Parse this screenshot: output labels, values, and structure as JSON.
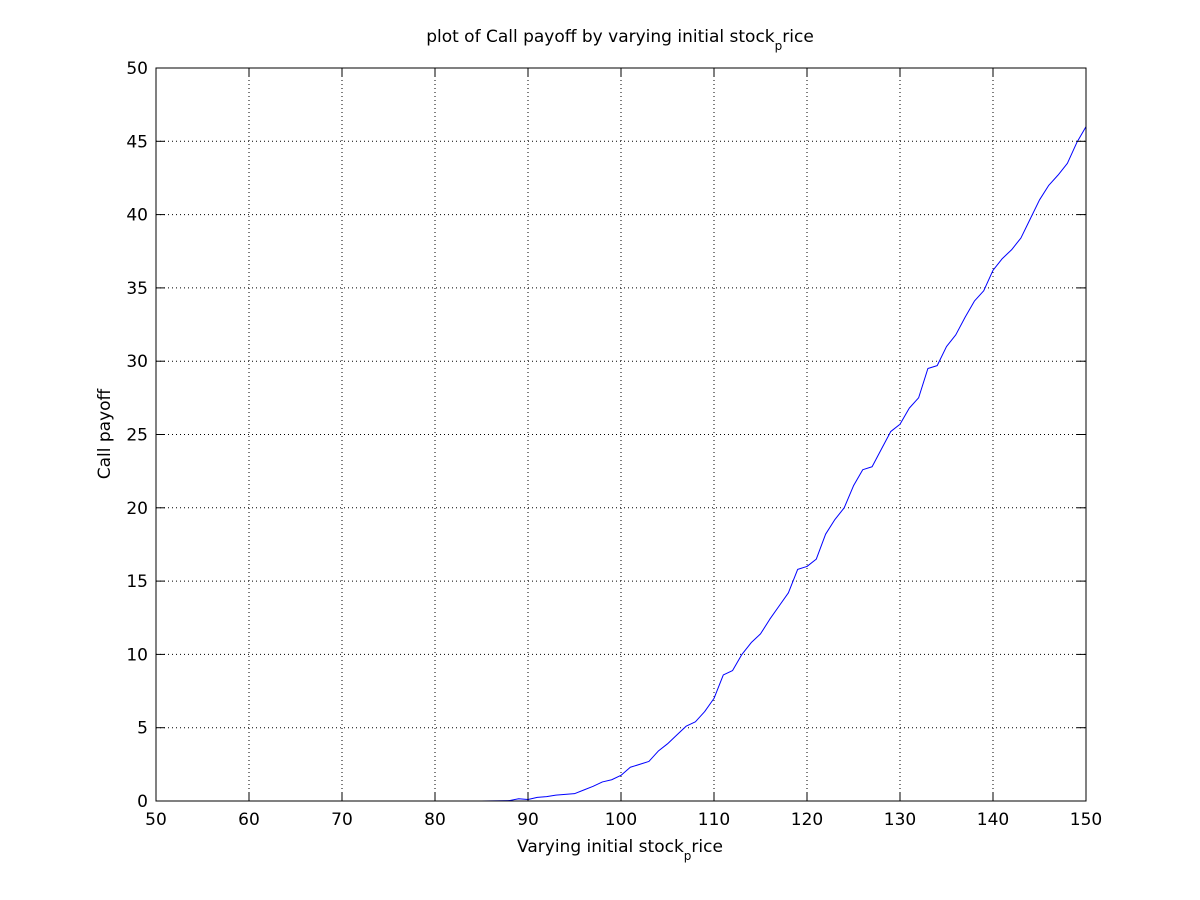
{
  "chart_data": {
    "type": "line",
    "title": {
      "main": "plot of Call payoff by varying initial stock",
      "sub": "p",
      "rest": "rice"
    },
    "xlabel": {
      "main": "Varying initial stock",
      "sub": "p",
      "rest": "rice"
    },
    "ylabel": "Call payoff",
    "xlim": [
      50,
      150
    ],
    "ylim": [
      0,
      50
    ],
    "xticks": [
      50,
      60,
      70,
      80,
      90,
      100,
      110,
      120,
      130,
      140,
      150
    ],
    "yticks": [
      0,
      5,
      10,
      15,
      20,
      25,
      30,
      35,
      40,
      45,
      50
    ],
    "grid": true,
    "line_color": "#0000ff",
    "series": [
      {
        "x": [
          50,
          80,
          85,
          88,
          89,
          90,
          91,
          92,
          93,
          94,
          95,
          96,
          97,
          98,
          99,
          100,
          101,
          102,
          103,
          104,
          105,
          106,
          107,
          108,
          109,
          110,
          111,
          112,
          113,
          114,
          115,
          116,
          117,
          118,
          119,
          120,
          121,
          122,
          123,
          124,
          125,
          126,
          127,
          128,
          129,
          130,
          131,
          132,
          133,
          134,
          135,
          136,
          137,
          138,
          139,
          140,
          141,
          142,
          143,
          144,
          145,
          146,
          147,
          148,
          149,
          150
        ],
        "y": [
          0,
          0,
          0,
          0.03,
          0.15,
          0.1,
          0.25,
          0.3,
          0.4,
          0.45,
          0.5,
          0.75,
          1.0,
          1.3,
          1.45,
          1.75,
          2.3,
          2.5,
          2.7,
          3.4,
          3.9,
          4.5,
          5.1,
          5.4,
          6.1,
          7.0,
          8.6,
          8.9,
          10.0,
          10.8,
          11.4,
          12.4,
          13.3,
          14.2,
          15.8,
          16.0,
          16.5,
          18.2,
          19.2,
          20.0,
          21.5,
          22.6,
          22.8,
          24.0,
          25.2,
          25.7,
          26.8,
          27.5,
          29.5,
          29.7,
          31.0,
          31.8,
          33.0,
          34.1,
          34.8,
          36.2,
          37.0,
          37.6,
          38.4,
          39.7,
          41.0,
          42.0,
          42.7,
          43.5,
          44.9,
          46.0
        ]
      }
    ]
  }
}
